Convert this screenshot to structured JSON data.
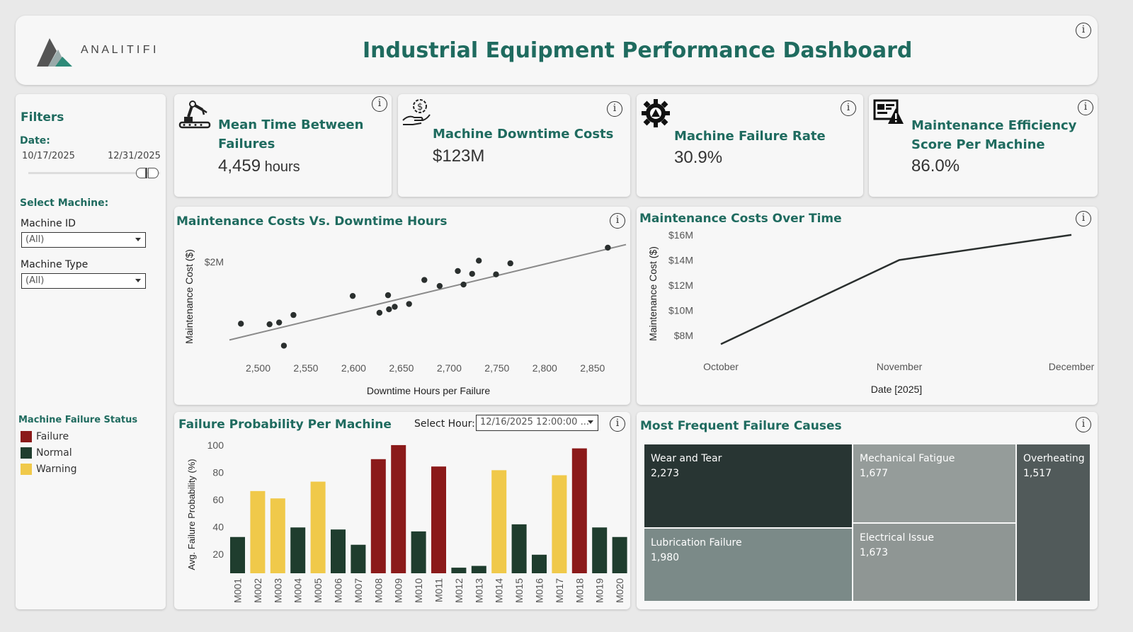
{
  "header": {
    "logo_text": "A N A L I T I F I",
    "title": "Industrial Equipment Performance Dashboard",
    "info_glyph": "i"
  },
  "filters": {
    "heading": "Filters",
    "date_label": "Date:",
    "date_start": "10/17/2025",
    "date_end": "12/31/2025",
    "machine_heading": "Select Machine:",
    "machine_id_label": "Machine ID",
    "machine_id_value": "(All)",
    "machine_type_label": "Machine Type",
    "machine_type_value": "(All)",
    "status_heading": "Machine Failure Status",
    "status_legend": [
      {
        "label": "Failure",
        "color": "#8b1a1a"
      },
      {
        "label": "Normal",
        "color": "#1f3d2e"
      },
      {
        "label": "Warning",
        "color": "#f0c94a"
      }
    ]
  },
  "kpis": [
    {
      "title_line1": "Mean Time Between",
      "title_line2": "Failures",
      "value": "4,459",
      "unit": " hours",
      "icon": "robot-arm-icon"
    },
    {
      "title_line1": "Machine Downtime Costs",
      "value": "$123M",
      "icon": "hand-dollar-gear-icon"
    },
    {
      "title_line1": "Machine Failure Rate",
      "value": "30.9%",
      "icon": "gear-warning-icon"
    },
    {
      "title_line1": "Maintenance Efficiency",
      "title_line2": "Score Per Machine",
      "value": "86.0%",
      "icon": "monitor-warning-icon"
    }
  ],
  "scatter": {
    "title": "Maintenance Costs Vs. Downtime Hours",
    "chart_data": {
      "type": "scatter",
      "xlabel": "Downtime Hours per Failure",
      "ylabel": "Maintenance Cost ($)",
      "xlim": [
        2470,
        2885
      ],
      "ylim": [
        1.0,
        2.25
      ],
      "x_ticks": [
        2500,
        2550,
        2600,
        2650,
        2700,
        2750,
        2800,
        2850
      ],
      "x_tick_labels": [
        "2,500",
        "2,550",
        "2,600",
        "2,650",
        "2,700",
        "2,750",
        "2,800",
        "2,850"
      ],
      "y_ticks": [
        2.0
      ],
      "y_tick_labels": [
        "$2M"
      ],
      "points": [
        {
          "x": 2482,
          "y": 1.338
        },
        {
          "x": 2512,
          "y": 1.332
        },
        {
          "x": 2522,
          "y": 1.351
        },
        {
          "x": 2527,
          "y": 1.103
        },
        {
          "x": 2537,
          "y": 1.431
        },
        {
          "x": 2599,
          "y": 1.635
        },
        {
          "x": 2627,
          "y": 1.455
        },
        {
          "x": 2636,
          "y": 1.643
        },
        {
          "x": 2637,
          "y": 1.492
        },
        {
          "x": 2643,
          "y": 1.519
        },
        {
          "x": 2658,
          "y": 1.549
        },
        {
          "x": 2674,
          "y": 1.806
        },
        {
          "x": 2690,
          "y": 1.742
        },
        {
          "x": 2709,
          "y": 1.902
        },
        {
          "x": 2715,
          "y": 1.757
        },
        {
          "x": 2724,
          "y": 1.872
        },
        {
          "x": 2731,
          "y": 2.013
        },
        {
          "x": 2749,
          "y": 1.866
        },
        {
          "x": 2764,
          "y": 1.984
        },
        {
          "x": 2866,
          "y": 2.152
        }
      ],
      "trend": [
        {
          "x": 2470,
          "y": 1.164
        },
        {
          "x": 2885,
          "y": 2.185
        }
      ]
    }
  },
  "line": {
    "title": "Maintenance Costs Over Time",
    "chart_data": {
      "type": "line",
      "xlabel": "Date [2025]",
      "ylabel": "Maintenance Cost ($)",
      "categories": [
        "October",
        "November",
        "December"
      ],
      "values": [
        7.3,
        14.0,
        16.0
      ],
      "ylim": [
        6.3,
        17.4
      ],
      "y_ticks": [
        8,
        10,
        12,
        14,
        16
      ],
      "y_tick_labels": [
        "$8M",
        "$10M",
        "$12M",
        "$14M",
        "$16M"
      ]
    }
  },
  "bars": {
    "title": "Failure Probability Per Machine",
    "select_hour_label": "Select Hour:",
    "select_hour_value": "12/16/2025 12:00:00 ...",
    "chart_data": {
      "type": "bar",
      "ylabel": "Avg. Failure Probability (%)",
      "ylim": [
        6,
        101
      ],
      "y_ticks": [
        20,
        40,
        60,
        80,
        100
      ],
      "categories": [
        "M001",
        "M002",
        "M003",
        "M004",
        "M005",
        "M006",
        "M007",
        "M008",
        "M009",
        "M010",
        "M011",
        "M012",
        "M013",
        "M014",
        "M015",
        "M016",
        "M017",
        "M018",
        "M019",
        "M020"
      ],
      "values": [
        32.6,
        66.3,
        60.9,
        39.6,
        73.2,
        38.1,
        26.9,
        89.7,
        100.0,
        36.7,
        84.3,
        10.1,
        11.4,
        81.6,
        41.9,
        19.6,
        77.9,
        97.6,
        39.6,
        32.6
      ],
      "status": [
        "Normal",
        "Warning",
        "Warning",
        "Normal",
        "Warning",
        "Normal",
        "Normal",
        "Failure",
        "Failure",
        "Normal",
        "Failure",
        "Normal",
        "Normal",
        "Warning",
        "Normal",
        "Normal",
        "Warning",
        "Failure",
        "Normal",
        "Normal"
      ],
      "colors": {
        "Failure": "#8b1a1a",
        "Normal": "#1f3d2e",
        "Warning": "#f0c94a"
      }
    }
  },
  "treemap": {
    "title": "Most Frequent Failure Causes",
    "chart_data": {
      "type": "treemap",
      "items": [
        {
          "label": "Wear and Tear",
          "value": "2,273",
          "color": "#283533"
        },
        {
          "label": "Lubrication Failure",
          "value": "1,980",
          "color": "#7b8a88"
        },
        {
          "label": "Mechanical Fatigue",
          "value": "1,677",
          "color": "#959c9a"
        },
        {
          "label": "Electrical Issue",
          "value": "1,673",
          "color": "#8f9694"
        },
        {
          "label": "Overheating",
          "value": "1,517",
          "color": "#515a5a"
        }
      ]
    }
  }
}
